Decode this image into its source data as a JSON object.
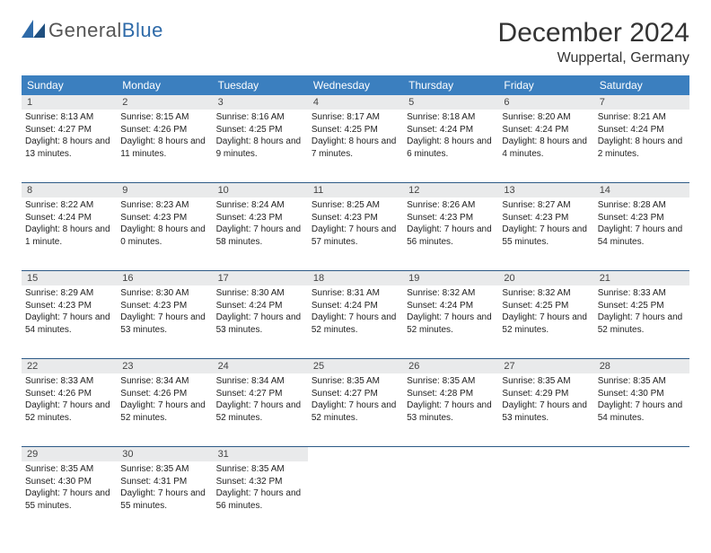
{
  "logo": {
    "word1": "General",
    "word2": "Blue",
    "accent_color": "#2e6aa8",
    "text_color": "#555"
  },
  "title": "December 2024",
  "location": "Wuppertal, Germany",
  "colors": {
    "header_bg": "#3b7fbf",
    "header_text": "#ffffff",
    "daynum_bg": "#e9eaeb",
    "row_border": "#2d5a86",
    "page_bg": "#ffffff"
  },
  "weekdays": [
    "Sunday",
    "Monday",
    "Tuesday",
    "Wednesday",
    "Thursday",
    "Friday",
    "Saturday"
  ],
  "weeks": [
    [
      {
        "n": 1,
        "sunrise": "8:13 AM",
        "sunset": "4:27 PM",
        "daylight": "8 hours and 13 minutes."
      },
      {
        "n": 2,
        "sunrise": "8:15 AM",
        "sunset": "4:26 PM",
        "daylight": "8 hours and 11 minutes."
      },
      {
        "n": 3,
        "sunrise": "8:16 AM",
        "sunset": "4:25 PM",
        "daylight": "8 hours and 9 minutes."
      },
      {
        "n": 4,
        "sunrise": "8:17 AM",
        "sunset": "4:25 PM",
        "daylight": "8 hours and 7 minutes."
      },
      {
        "n": 5,
        "sunrise": "8:18 AM",
        "sunset": "4:24 PM",
        "daylight": "8 hours and 6 minutes."
      },
      {
        "n": 6,
        "sunrise": "8:20 AM",
        "sunset": "4:24 PM",
        "daylight": "8 hours and 4 minutes."
      },
      {
        "n": 7,
        "sunrise": "8:21 AM",
        "sunset": "4:24 PM",
        "daylight": "8 hours and 2 minutes."
      }
    ],
    [
      {
        "n": 8,
        "sunrise": "8:22 AM",
        "sunset": "4:24 PM",
        "daylight": "8 hours and 1 minute."
      },
      {
        "n": 9,
        "sunrise": "8:23 AM",
        "sunset": "4:23 PM",
        "daylight": "8 hours and 0 minutes."
      },
      {
        "n": 10,
        "sunrise": "8:24 AM",
        "sunset": "4:23 PM",
        "daylight": "7 hours and 58 minutes."
      },
      {
        "n": 11,
        "sunrise": "8:25 AM",
        "sunset": "4:23 PM",
        "daylight": "7 hours and 57 minutes."
      },
      {
        "n": 12,
        "sunrise": "8:26 AM",
        "sunset": "4:23 PM",
        "daylight": "7 hours and 56 minutes."
      },
      {
        "n": 13,
        "sunrise": "8:27 AM",
        "sunset": "4:23 PM",
        "daylight": "7 hours and 55 minutes."
      },
      {
        "n": 14,
        "sunrise": "8:28 AM",
        "sunset": "4:23 PM",
        "daylight": "7 hours and 54 minutes."
      }
    ],
    [
      {
        "n": 15,
        "sunrise": "8:29 AM",
        "sunset": "4:23 PM",
        "daylight": "7 hours and 54 minutes."
      },
      {
        "n": 16,
        "sunrise": "8:30 AM",
        "sunset": "4:23 PM",
        "daylight": "7 hours and 53 minutes."
      },
      {
        "n": 17,
        "sunrise": "8:30 AM",
        "sunset": "4:24 PM",
        "daylight": "7 hours and 53 minutes."
      },
      {
        "n": 18,
        "sunrise": "8:31 AM",
        "sunset": "4:24 PM",
        "daylight": "7 hours and 52 minutes."
      },
      {
        "n": 19,
        "sunrise": "8:32 AM",
        "sunset": "4:24 PM",
        "daylight": "7 hours and 52 minutes."
      },
      {
        "n": 20,
        "sunrise": "8:32 AM",
        "sunset": "4:25 PM",
        "daylight": "7 hours and 52 minutes."
      },
      {
        "n": 21,
        "sunrise": "8:33 AM",
        "sunset": "4:25 PM",
        "daylight": "7 hours and 52 minutes."
      }
    ],
    [
      {
        "n": 22,
        "sunrise": "8:33 AM",
        "sunset": "4:26 PM",
        "daylight": "7 hours and 52 minutes."
      },
      {
        "n": 23,
        "sunrise": "8:34 AM",
        "sunset": "4:26 PM",
        "daylight": "7 hours and 52 minutes."
      },
      {
        "n": 24,
        "sunrise": "8:34 AM",
        "sunset": "4:27 PM",
        "daylight": "7 hours and 52 minutes."
      },
      {
        "n": 25,
        "sunrise": "8:35 AM",
        "sunset": "4:27 PM",
        "daylight": "7 hours and 52 minutes."
      },
      {
        "n": 26,
        "sunrise": "8:35 AM",
        "sunset": "4:28 PM",
        "daylight": "7 hours and 53 minutes."
      },
      {
        "n": 27,
        "sunrise": "8:35 AM",
        "sunset": "4:29 PM",
        "daylight": "7 hours and 53 minutes."
      },
      {
        "n": 28,
        "sunrise": "8:35 AM",
        "sunset": "4:30 PM",
        "daylight": "7 hours and 54 minutes."
      }
    ],
    [
      {
        "n": 29,
        "sunrise": "8:35 AM",
        "sunset": "4:30 PM",
        "daylight": "7 hours and 55 minutes."
      },
      {
        "n": 30,
        "sunrise": "8:35 AM",
        "sunset": "4:31 PM",
        "daylight": "7 hours and 55 minutes."
      },
      {
        "n": 31,
        "sunrise": "8:35 AM",
        "sunset": "4:32 PM",
        "daylight": "7 hours and 56 minutes."
      },
      null,
      null,
      null,
      null
    ]
  ],
  "labels": {
    "sunrise": "Sunrise: ",
    "sunset": "Sunset: ",
    "daylight": "Daylight: "
  }
}
